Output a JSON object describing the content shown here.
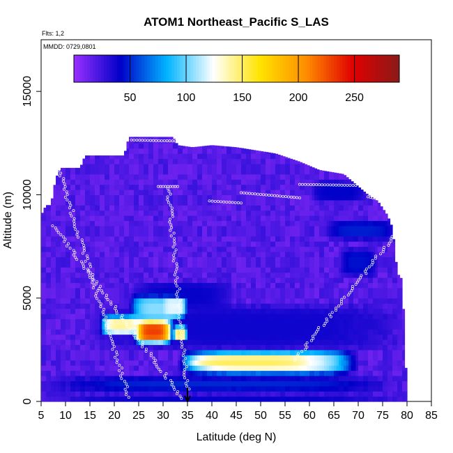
{
  "chart_data": {
    "type": "heatmap",
    "title": "ATOM1 Northeast_Pacific S_LAS",
    "annotations": [
      "Flts: 1,2",
      "MMDD: 0729,0801"
    ],
    "xlabel": "Latitude (deg N)",
    "ylabel": "Altitude (m)",
    "xlim": [
      5,
      85
    ],
    "ylim": [
      0,
      17500
    ],
    "x_ticks": [
      5,
      10,
      15,
      20,
      25,
      30,
      35,
      40,
      45,
      50,
      55,
      60,
      65,
      70,
      75,
      80,
      85
    ],
    "y_ticks": [
      0,
      5000,
      10000,
      15000
    ],
    "colorbar": {
      "range": [
        0,
        290
      ],
      "ticks": [
        50,
        100,
        150,
        200,
        250
      ],
      "colors": [
        "#9b30ff",
        "#0000c8",
        "#00b4ff",
        "#ffffff",
        "#ffe400",
        "#ff8c00",
        "#e00000",
        "#8b1a1a"
      ]
    },
    "marker": {
      "x": 35,
      "y": 0,
      "shape": "arrow-down"
    },
    "background_value": 12,
    "features": [
      {
        "lat": [
          24,
          32
        ],
        "alt": [
          2800,
          4000
        ],
        "value": 230
      },
      {
        "lat": [
          17,
          26
        ],
        "alt": [
          3200,
          4200
        ],
        "value": 140
      },
      {
        "lat": [
          32,
          35
        ],
        "alt": [
          2900,
          3700
        ],
        "value": 150
      },
      {
        "lat": [
          23,
          35
        ],
        "alt": [
          3800,
          5200
        ],
        "value": 105
      },
      {
        "lat": [
          30,
          35
        ],
        "alt": [
          4100,
          5100
        ],
        "value": 120
      },
      {
        "lat": [
          33,
          70
        ],
        "alt": [
          1300,
          2500
        ],
        "value": 130
      },
      {
        "lat": [
          34,
          60
        ],
        "alt": [
          1600,
          2200
        ],
        "value": 150
      },
      {
        "lat": [
          5,
          79
        ],
        "alt": [
          500,
          1200
        ],
        "value": 50
      },
      {
        "lat": [
          5,
          80
        ],
        "alt": [
          0,
          400
        ],
        "value": 40
      },
      {
        "lat": [
          14,
          80
        ],
        "alt": [
          2400,
          4800
        ],
        "value": 38
      },
      {
        "lat": [
          23,
          45
        ],
        "alt": [
          4400,
          5900
        ],
        "value": 40
      },
      {
        "lat": [
          66,
          74
        ],
        "alt": [
          6000,
          7500
        ],
        "value": 45
      },
      {
        "lat": [
          63,
          78
        ],
        "alt": [
          7800,
          8800
        ],
        "value": 48
      },
      {
        "lat": [
          60,
          72
        ],
        "alt": [
          9600,
          10700
        ],
        "value": 42
      }
    ],
    "flight_tracks": [
      {
        "lat": [
          23.5,
          32.5
        ],
        "alt": [
          12650,
          12600
        ]
      },
      {
        "lat": [
          39.5,
          46
        ],
        "alt": [
          9700,
          9600
        ]
      },
      {
        "lat": [
          46,
          58
        ],
        "alt": [
          10100,
          9850
        ]
      },
      {
        "lat": [
          58,
          69.5
        ],
        "alt": [
          10500,
          10450
        ]
      },
      {
        "lat": [
          72,
          76
        ],
        "alt": [
          9900,
          9700
        ]
      },
      {
        "lat": [
          29,
          33
        ],
        "alt": [
          10400,
          10400
        ]
      },
      {
        "lat": [
          7.5,
          34
        ],
        "alt": [
          8500,
          150
        ]
      },
      {
        "lat": [
          8.5,
          23
        ],
        "alt": [
          11300,
          200
        ]
      },
      {
        "lat": [
          35,
          31
        ],
        "alt": [
          600,
          10300
        ]
      },
      {
        "lat": [
          57,
          79
        ],
        "alt": [
          2000,
          8500
        ]
      }
    ]
  }
}
